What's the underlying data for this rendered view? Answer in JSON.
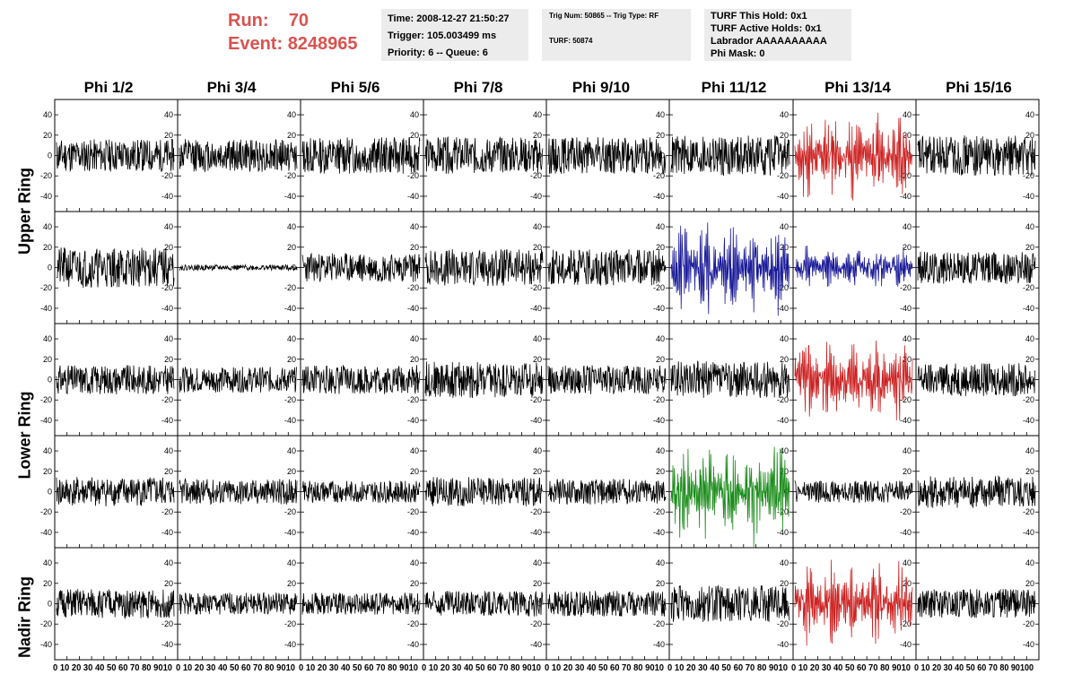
{
  "header": {
    "run_label": "Run:",
    "run_value": "70",
    "event_label": "Event:",
    "event_value": "8248965",
    "time": "Time: 2008-12-27 21:50:27",
    "trigger": "Trigger: 105.003499 ms",
    "priority": "Priority: 6 -- Queue: 6",
    "trig_num": "Trig Num: 50865 -- Trig Type: RF",
    "turf": "TURF: 50874",
    "turf_this_hold": "TURF This Hold: 0x1",
    "turf_active_holds": "TURF Active Holds: 0x1",
    "labrador": "Labrador AAAAAAAAAA",
    "phi_mask": "Phi Mask: 0"
  },
  "columns": [
    "Phi 1/2",
    "Phi 3/4",
    "Phi 5/6",
    "Phi 7/8",
    "Phi 9/10",
    "Phi 11/12",
    "Phi 13/14",
    "Phi 15/16"
  ],
  "ring_labels": [
    "Upper Ring",
    "Lower Ring",
    "Nadir Ring"
  ],
  "colors": {
    "run_text": "#d9534f",
    "trace_default": "#000000",
    "trace_red": "#cc2222",
    "trace_blue": "#1a1a99",
    "trace_green": "#1a8c1a"
  },
  "chart_data": {
    "type": "line",
    "rows": 5,
    "cols": 8,
    "ylim": [
      -55,
      55
    ],
    "xlim": [
      0,
      100
    ],
    "y_ticks": [
      -40,
      -20,
      0,
      20,
      40
    ],
    "x_tick_labels": [
      "0",
      "10",
      "20",
      "30",
      "40",
      "50",
      "60",
      "70",
      "80",
      "90",
      "100"
    ],
    "x_axis_text": "0 10 20 30 40 50 60 70 80 9010",
    "x_axis_text_last": "0 10 20 30 40 50 60 70 80 90100",
    "panels": [
      {
        "row": 0,
        "col": 0,
        "color": "default",
        "amp": 18,
        "seed": 11
      },
      {
        "row": 0,
        "col": 1,
        "color": "default",
        "amp": 18,
        "seed": 12
      },
      {
        "row": 0,
        "col": 2,
        "color": "default",
        "amp": 20,
        "seed": 13
      },
      {
        "row": 0,
        "col": 3,
        "color": "default",
        "amp": 20,
        "seed": 14
      },
      {
        "row": 0,
        "col": 4,
        "color": "default",
        "amp": 20,
        "seed": 15
      },
      {
        "row": 0,
        "col": 5,
        "color": "default",
        "amp": 22,
        "seed": 16
      },
      {
        "row": 0,
        "col": 6,
        "color": "red",
        "amp": 28,
        "seed": 17,
        "envelope": true
      },
      {
        "row": 0,
        "col": 7,
        "color": "default",
        "amp": 22,
        "seed": 18
      },
      {
        "row": 1,
        "col": 0,
        "color": "default",
        "amp": 22,
        "seed": 21
      },
      {
        "row": 1,
        "col": 1,
        "color": "default",
        "amp": 3,
        "seed": 22
      },
      {
        "row": 1,
        "col": 2,
        "color": "default",
        "amp": 16,
        "seed": 23
      },
      {
        "row": 1,
        "col": 3,
        "color": "default",
        "amp": 20,
        "seed": 24
      },
      {
        "row": 1,
        "col": 4,
        "color": "default",
        "amp": 20,
        "seed": 25
      },
      {
        "row": 1,
        "col": 5,
        "color": "blue",
        "amp": 32,
        "seed": 26,
        "envelope": true
      },
      {
        "row": 1,
        "col": 6,
        "color": "blue",
        "amp": 14,
        "seed": 27,
        "envelope": true
      },
      {
        "row": 1,
        "col": 7,
        "color": "default",
        "amp": 18,
        "seed": 28
      },
      {
        "row": 2,
        "col": 0,
        "color": "default",
        "amp": 16,
        "seed": 31
      },
      {
        "row": 2,
        "col": 1,
        "color": "default",
        "amp": 14,
        "seed": 32
      },
      {
        "row": 2,
        "col": 2,
        "color": "default",
        "amp": 16,
        "seed": 33
      },
      {
        "row": 2,
        "col": 3,
        "color": "default",
        "amp": 20,
        "seed": 34
      },
      {
        "row": 2,
        "col": 4,
        "color": "default",
        "amp": 16,
        "seed": 35
      },
      {
        "row": 2,
        "col": 5,
        "color": "default",
        "amp": 20,
        "seed": 36
      },
      {
        "row": 2,
        "col": 6,
        "color": "red",
        "amp": 30,
        "seed": 37,
        "envelope": true
      },
      {
        "row": 2,
        "col": 7,
        "color": "default",
        "amp": 18,
        "seed": 38
      },
      {
        "row": 3,
        "col": 0,
        "color": "default",
        "amp": 16,
        "seed": 41
      },
      {
        "row": 3,
        "col": 1,
        "color": "default",
        "amp": 14,
        "seed": 42
      },
      {
        "row": 3,
        "col": 2,
        "color": "default",
        "amp": 12,
        "seed": 43
      },
      {
        "row": 3,
        "col": 3,
        "color": "default",
        "amp": 16,
        "seed": 44
      },
      {
        "row": 3,
        "col": 4,
        "color": "default",
        "amp": 14,
        "seed": 45
      },
      {
        "row": 3,
        "col": 5,
        "color": "green",
        "amp": 34,
        "seed": 46,
        "envelope": true
      },
      {
        "row": 3,
        "col": 6,
        "color": "default",
        "amp": 12,
        "seed": 47
      },
      {
        "row": 3,
        "col": 7,
        "color": "default",
        "amp": 18,
        "seed": 48
      },
      {
        "row": 4,
        "col": 0,
        "color": "default",
        "amp": 16,
        "seed": 51
      },
      {
        "row": 4,
        "col": 1,
        "color": "default",
        "amp": 12,
        "seed": 52
      },
      {
        "row": 4,
        "col": 2,
        "color": "default",
        "amp": 12,
        "seed": 53
      },
      {
        "row": 4,
        "col": 3,
        "color": "default",
        "amp": 14,
        "seed": 54
      },
      {
        "row": 4,
        "col": 4,
        "color": "default",
        "amp": 14,
        "seed": 55
      },
      {
        "row": 4,
        "col": 5,
        "color": "default",
        "amp": 20,
        "seed": 56
      },
      {
        "row": 4,
        "col": 6,
        "color": "red",
        "amp": 28,
        "seed": 57,
        "envelope": true
      },
      {
        "row": 4,
        "col": 7,
        "color": "default",
        "amp": 16,
        "seed": 58
      }
    ]
  }
}
